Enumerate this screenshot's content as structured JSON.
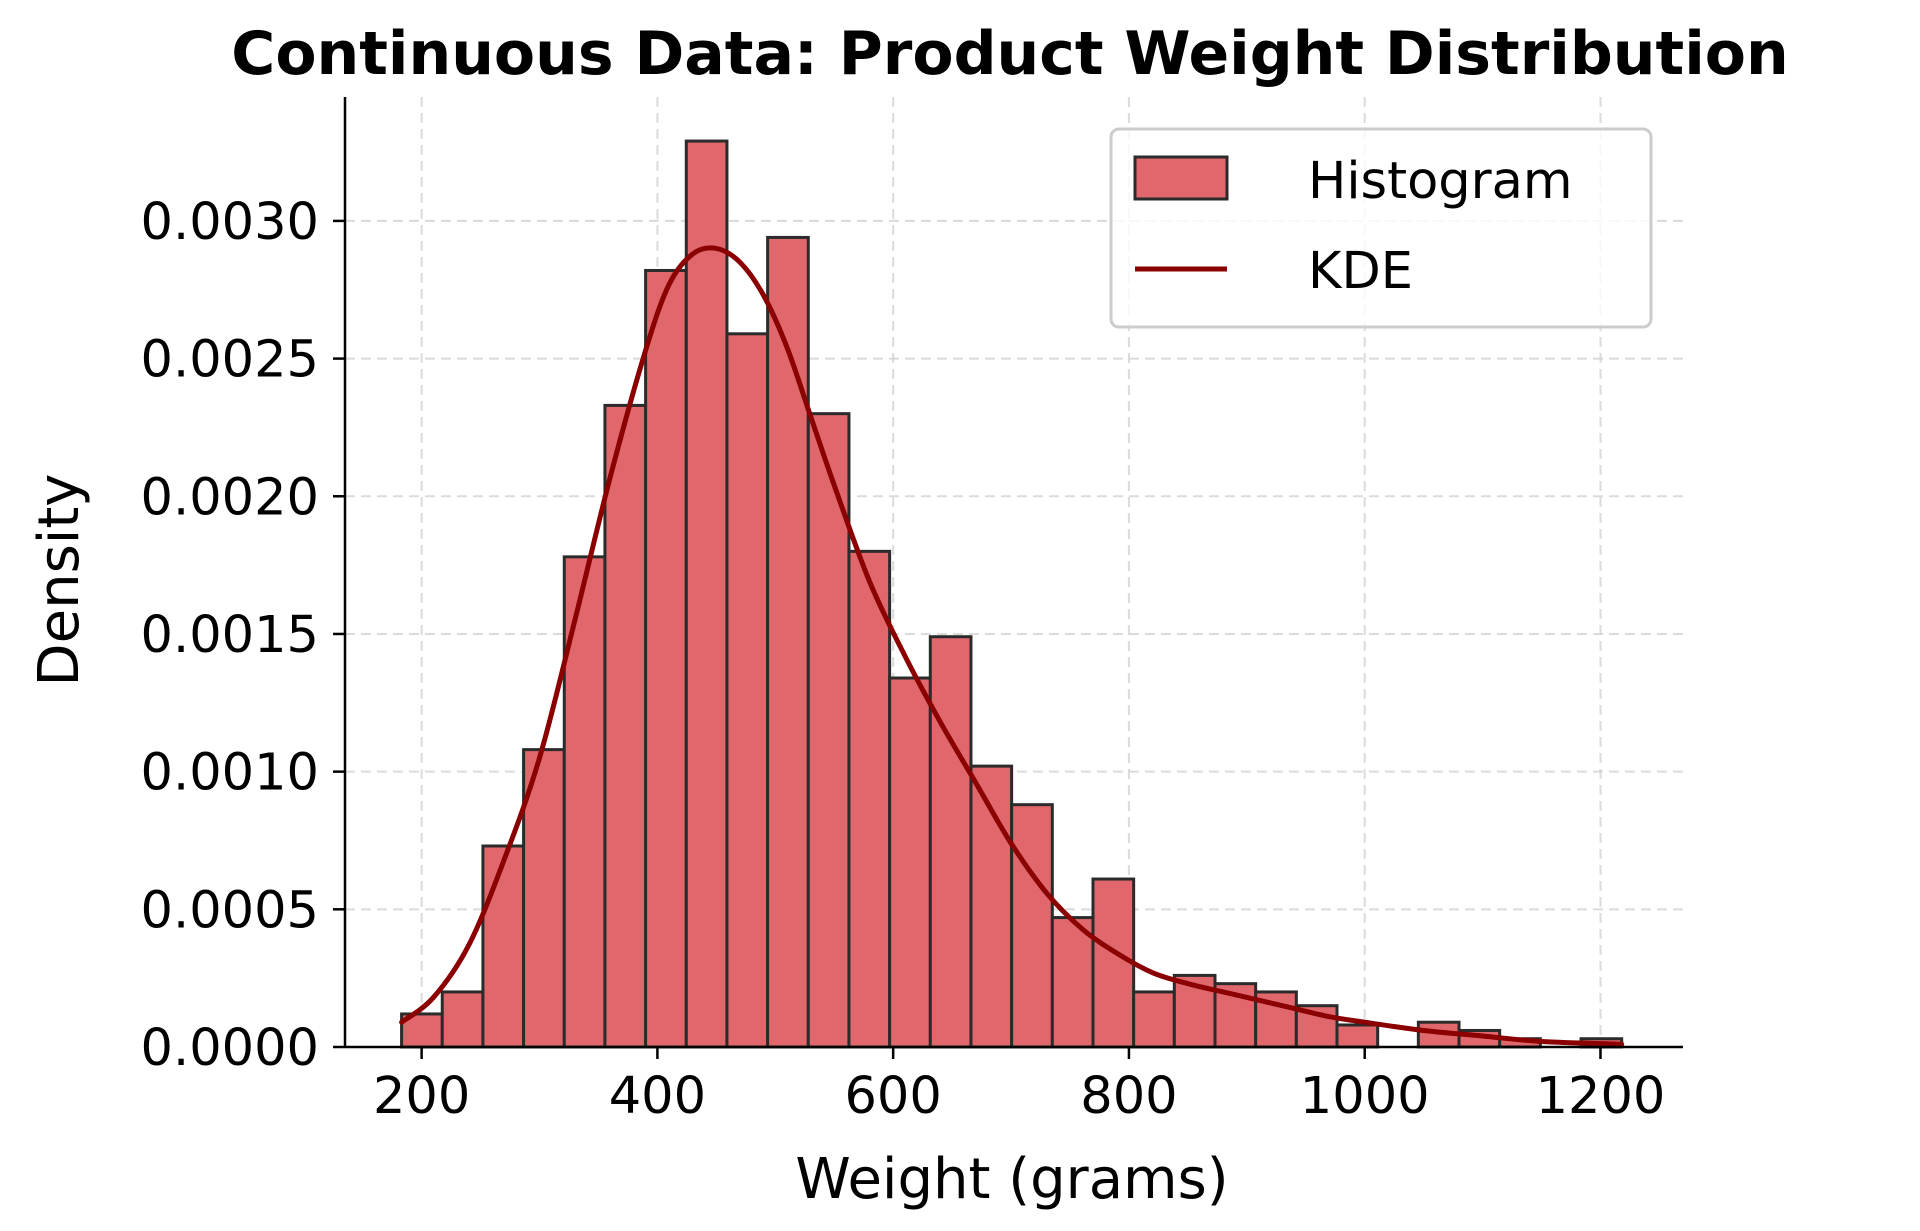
{
  "chart_data": {
    "type": "bar",
    "title": "Continuous Data: Product Weight Distribution",
    "xlabel": "Weight (grams)",
    "ylabel": "Density",
    "xlim": [
      135,
      1270
    ],
    "ylim": [
      0,
      0.00345
    ],
    "xticks": [
      200,
      400,
      600,
      800,
      1000,
      1200
    ],
    "xtick_labels": [
      "200",
      "400",
      "600",
      "800",
      "1000",
      "1200"
    ],
    "yticks": [
      0,
      0.0005,
      0.001,
      0.0015,
      0.002,
      0.0025,
      0.003
    ],
    "ytick_labels": [
      "0.0000",
      "0.0005",
      "0.0010",
      "0.0015",
      "0.0020",
      "0.0025",
      "0.0030"
    ],
    "grid": true,
    "legend_position": "top-right",
    "colors": {
      "bars": "#e0676b",
      "bar_edge": "#2b2b2b",
      "kde": "#8b0000",
      "grid": "#cccccc"
    },
    "series": [
      {
        "name": "Histogram",
        "bin_edges": [
          183,
          217.5,
          252,
          286.5,
          321,
          355.5,
          390,
          424.5,
          459,
          493.5,
          528,
          562.5,
          597,
          631.5,
          666,
          700.5,
          735,
          769.5,
          804,
          838.5,
          873,
          907.5,
          942,
          976.5,
          1011,
          1045.5,
          1080,
          1114.5,
          1149,
          1183.5,
          1218
        ],
        "values": [
          0.00012,
          0.0002,
          0.00073,
          0.00108,
          0.00178,
          0.00233,
          0.00282,
          0.00329,
          0.00259,
          0.00294,
          0.0023,
          0.0018,
          0.00134,
          0.00149,
          0.00102,
          0.00088,
          0.00047,
          0.00061,
          0.0002,
          0.00026,
          0.00023,
          0.0002,
          0.00015,
          8e-05,
          0.0,
          9e-05,
          6e-05,
          3e-05,
          0.0,
          3e-05
        ]
      },
      {
        "name": "KDE",
        "x": [
          183,
          210,
          240,
          270,
          300,
          330,
          360,
          390,
          410,
          430,
          450,
          470,
          490,
          510,
          530,
          550,
          580,
          610,
          640,
          670,
          700,
          730,
          760,
          790,
          820,
          850,
          880,
          910,
          940,
          970,
          1000,
          1050,
          1100,
          1150,
          1218
        ],
        "y": [
          9e-05,
          0.00018,
          0.00037,
          0.00068,
          0.00105,
          0.00155,
          0.00207,
          0.00253,
          0.00277,
          0.00288,
          0.0029,
          0.00285,
          0.00273,
          0.00254,
          0.00229,
          0.00204,
          0.00169,
          0.00142,
          0.00118,
          0.00096,
          0.00074,
          0.00056,
          0.00043,
          0.00034,
          0.00027,
          0.00023,
          0.0002,
          0.00017,
          0.00014,
          0.00011,
          9e-05,
          6e-05,
          4e-05,
          2e-05,
          1e-05
        ]
      }
    ]
  }
}
